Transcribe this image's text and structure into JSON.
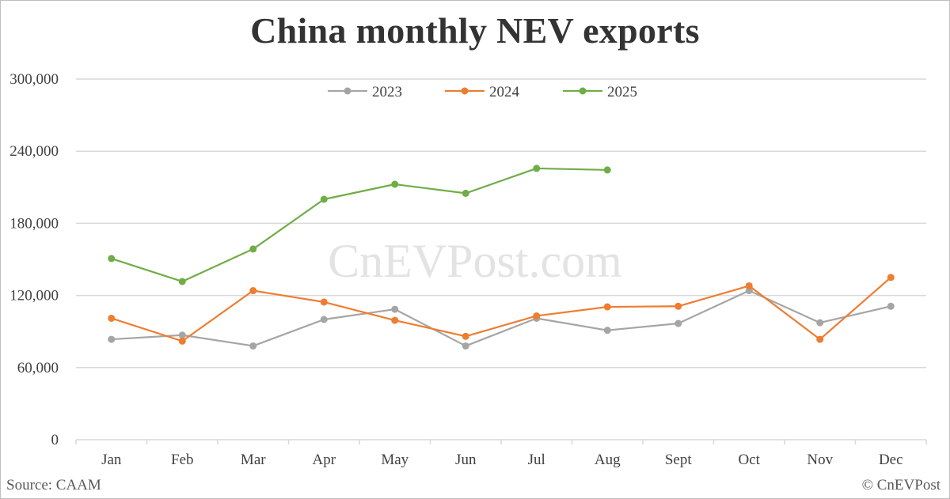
{
  "title": "China monthly NEV exports",
  "watermark": "CnEVPost.com",
  "source": "Source: CAAM",
  "credit": "© CnEVPost",
  "colors": {
    "2023": "#a5a5a5",
    "2024": "#ed7d31",
    "2025": "#70ad47",
    "grid": "#d9d9d9"
  },
  "chart_data": {
    "type": "line",
    "title": "China monthly NEV exports",
    "xlabel": "",
    "ylabel": "",
    "ylim": [
      0,
      300000
    ],
    "yticks": [
      0,
      60000,
      120000,
      180000,
      240000,
      300000
    ],
    "ytick_labels": [
      "0",
      "60,000",
      "120,000",
      "180,000",
      "240,000",
      "300,000"
    ],
    "grid": true,
    "legend_position": "top-center",
    "categories": [
      "Jan",
      "Feb",
      "Mar",
      "Apr",
      "May",
      "Jun",
      "Jul",
      "Aug",
      "Sept",
      "Oct",
      "Nov",
      "Dec"
    ],
    "series": [
      {
        "name": "2023",
        "values": [
          83500,
          87000,
          78000,
          100000,
          108500,
          78000,
          101000,
          91000,
          96700,
          124000,
          97300,
          111000
        ]
      },
      {
        "name": "2024",
        "values": [
          101000,
          82000,
          124000,
          114500,
          99300,
          86000,
          103000,
          110500,
          111000,
          128000,
          83500,
          135000
        ]
      },
      {
        "name": "2025",
        "values": [
          150700,
          131600,
          158600,
          200000,
          212500,
          205000,
          225700,
          224400
        ]
      }
    ]
  }
}
